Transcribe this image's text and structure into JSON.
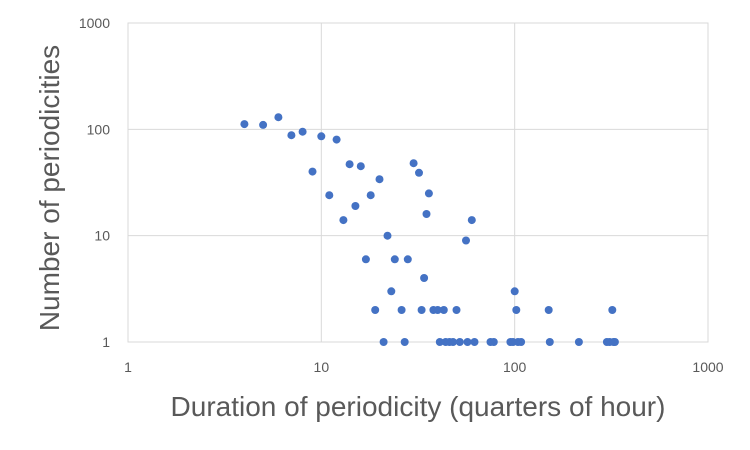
{
  "chart_data": {
    "type": "scatter",
    "title": "",
    "xlabel": "Duration of periodicity (quarters of hour)",
    "ylabel": "Number of periodicities",
    "x_scale": "log",
    "y_scale": "log",
    "xlim": [
      1,
      1000
    ],
    "ylim": [
      1,
      1000
    ],
    "x_ticks": [
      "1",
      "10",
      "100",
      "1000"
    ],
    "y_ticks": [
      "1",
      "10",
      "100",
      "1000"
    ],
    "grid": true,
    "legend": "none",
    "marker_color": "#4472C4",
    "series": [
      {
        "points": [
          [
            4,
            112
          ],
          [
            5,
            110
          ],
          [
            6,
            130
          ],
          [
            7,
            88
          ],
          [
            8,
            95
          ],
          [
            9,
            40
          ],
          [
            10,
            86
          ],
          [
            11,
            24
          ],
          [
            12,
            80
          ],
          [
            13,
            14
          ],
          [
            14,
            47
          ],
          [
            15,
            19
          ],
          [
            16,
            45
          ],
          [
            17,
            6
          ],
          [
            18,
            24
          ],
          [
            19,
            2
          ],
          [
            20,
            34
          ],
          [
            21,
            1
          ],
          [
            22,
            10
          ],
          [
            23,
            3
          ],
          [
            24,
            6
          ],
          [
            26,
            2
          ],
          [
            27,
            1
          ],
          [
            28,
            6
          ],
          [
            30,
            48
          ],
          [
            32,
            39
          ],
          [
            33,
            2
          ],
          [
            34,
            4
          ],
          [
            35,
            16
          ],
          [
            36,
            25
          ],
          [
            38,
            2
          ],
          [
            40,
            2
          ],
          [
            41,
            1
          ],
          [
            43,
            2
          ],
          [
            44,
            1
          ],
          [
            46,
            1
          ],
          [
            48,
            1
          ],
          [
            50,
            2
          ],
          [
            52,
            1
          ],
          [
            56,
            9
          ],
          [
            57,
            1
          ],
          [
            60,
            14
          ],
          [
            62,
            1
          ],
          [
            75,
            1
          ],
          [
            78,
            1
          ],
          [
            95,
            1
          ],
          [
            98,
            1
          ],
          [
            100,
            3
          ],
          [
            102,
            2
          ],
          [
            104,
            1
          ],
          [
            108,
            1
          ],
          [
            150,
            2
          ],
          [
            152,
            1
          ],
          [
            215,
            1
          ],
          [
            300,
            1
          ],
          [
            310,
            1
          ],
          [
            320,
            2
          ],
          [
            325,
            1
          ],
          [
            330,
            1
          ]
        ]
      }
    ]
  }
}
